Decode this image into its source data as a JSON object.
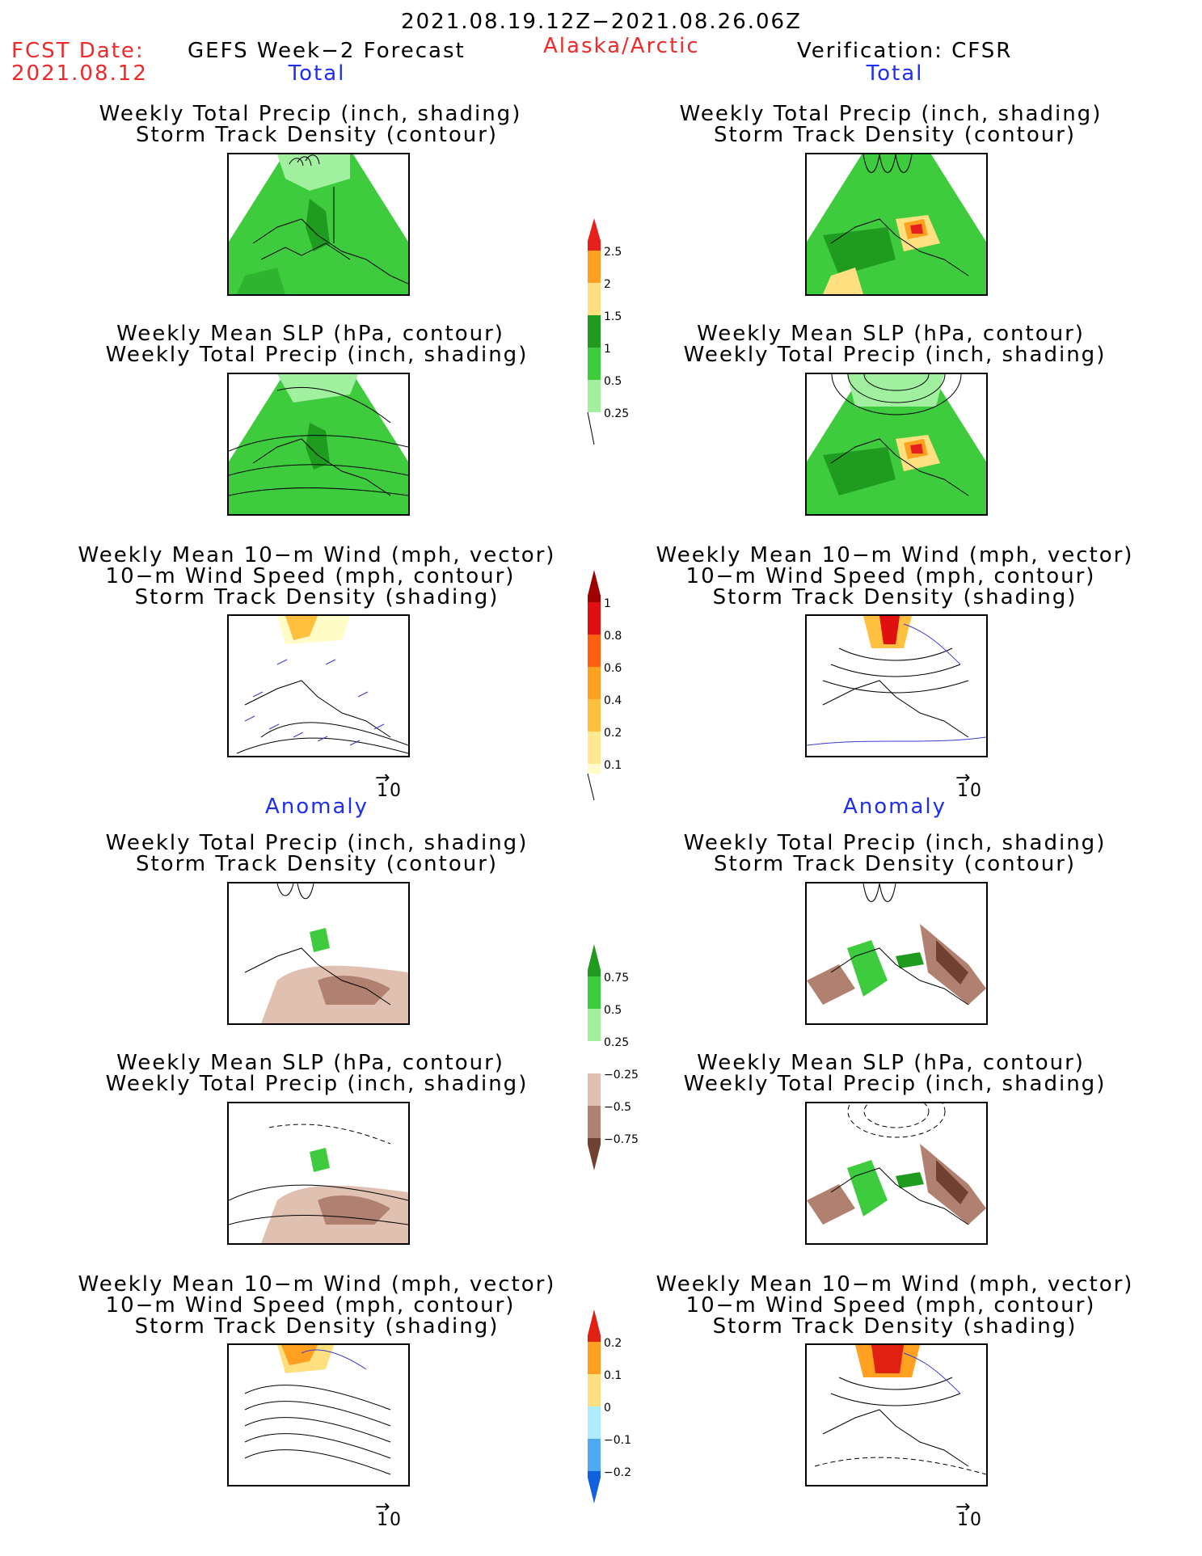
{
  "header": {
    "date_range": "2021.08.19.12Z−2021.08.26.06Z",
    "fcst_label": "FCST Date:",
    "fcst_date": "2021.08.12",
    "model": "GEFS Week−2 Forecast",
    "region": "Alaska/Arctic",
    "verification": "Verification: CFSR"
  },
  "sections": {
    "total": "Total",
    "anomaly": "Anomaly"
  },
  "titles": {
    "precip_storm": [
      "Weekly Total Precip (inch, shading)",
      "Storm Track Density (contour)"
    ],
    "slp_precip": [
      "Weekly Mean SLP (hPa, contour)",
      "Weekly Total Precip (inch, shading)"
    ],
    "wind_storm": [
      "Weekly Mean 10−m Wind (mph, vector)",
      "10−m Wind Speed (mph, contour)",
      "Storm Track Density (shading)"
    ]
  },
  "vector_scale": "10",
  "colorbars": {
    "precip_total": {
      "labels": [
        "2.5",
        "2",
        "1.5",
        "1",
        "0.5",
        "0.25"
      ],
      "colors": [
        "#e8201c",
        "#ffa024",
        "#ffe080",
        "#1f9c1f",
        "#3ecc3e",
        "#a0f0a0"
      ]
    },
    "storm_total": {
      "labels": [
        "1",
        "0.8",
        "0.6",
        "0.4",
        "0.2",
        "0.1"
      ],
      "colors": [
        "#a00000",
        "#e01010",
        "#ff6010",
        "#ffa020",
        "#ffc040",
        "#ffe890",
        "#fffcc8"
      ]
    },
    "precip_anom": {
      "labels": [
        "0.75",
        "0.5",
        "0.25",
        "−0.25",
        "−0.5",
        "−0.75"
      ],
      "colors": [
        "#1f9c1f",
        "#3ecc3e",
        "#a0f0a0",
        "#ffffff",
        "#e0c0b0",
        "#b08070",
        "#704030"
      ]
    },
    "storm_anom": {
      "labels": [
        "0.2",
        "0.1",
        "0",
        "−0.1",
        "−0.2"
      ],
      "colors": [
        "#e02010",
        "#ffa020",
        "#ffe080",
        "#b0ecff",
        "#50a8f0",
        "#1060e0"
      ]
    }
  }
}
